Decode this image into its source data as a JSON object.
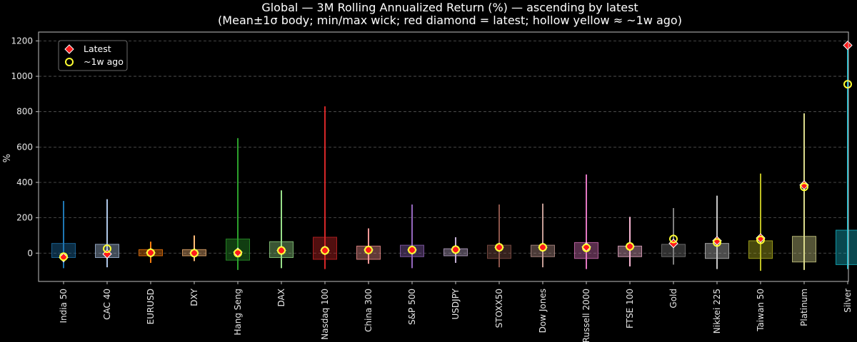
{
  "chart_data": {
    "type": "boxplot",
    "title": "Global — 3M Rolling Annualized Return (%) — ascending by latest",
    "subtitle": "(Mean±1σ body; min/max wick; red diamond = latest; hollow yellow ≈ ~1w ago)",
    "xlabel": "",
    "ylabel": "%",
    "ylim": [
      -160,
      1250
    ],
    "yticks": [
      0,
      200,
      400,
      600,
      800,
      1000,
      1200
    ],
    "grid": true,
    "legend": {
      "position": "top-left",
      "entries": [
        {
          "label": "Latest",
          "marker": "diamond",
          "color": "#ff1a1a"
        },
        {
          "label": "~1w ago",
          "marker": "hollow-circle",
          "color": "#ffff33"
        }
      ]
    },
    "latest_color": "#ff1a1a",
    "week_ago_color": "#ffff33",
    "series": [
      {
        "name": "India 50",
        "color": "#1f77b4",
        "min": -85,
        "max": 295,
        "body_low": -25,
        "body_high": 55,
        "latest": -25,
        "week_ago": -20
      },
      {
        "name": "CAC 40",
        "color": "#aec7e8",
        "min": -80,
        "max": 305,
        "body_low": -25,
        "body_high": 50,
        "latest": -5,
        "week_ago": 25
      },
      {
        "name": "EURUSD",
        "color": "#ff7f0e",
        "min": -55,
        "max": 65,
        "body_low": -15,
        "body_high": 20,
        "latest": 2,
        "week_ago": 2
      },
      {
        "name": "DXY",
        "color": "#ffbb78",
        "min": -45,
        "max": 100,
        "body_low": -15,
        "body_high": 20,
        "latest": 0,
        "week_ago": 0
      },
      {
        "name": "Hang Seng",
        "color": "#2ca02c",
        "min": -95,
        "max": 650,
        "body_low": -40,
        "body_high": 80,
        "latest": 5,
        "week_ago": 0
      },
      {
        "name": "DAX",
        "color": "#98df8a",
        "min": -85,
        "max": 355,
        "body_low": -25,
        "body_high": 65,
        "latest": 15,
        "week_ago": 15
      },
      {
        "name": "Nasdaq 100",
        "color": "#d62728",
        "min": -90,
        "max": 830,
        "body_low": -35,
        "body_high": 90,
        "latest": 15,
        "week_ago": 15
      },
      {
        "name": "China 300",
        "color": "#ff9896",
        "min": -60,
        "max": 140,
        "body_low": -35,
        "body_high": 40,
        "latest": 18,
        "week_ago": 18
      },
      {
        "name": "S&P 500",
        "color": "#9467bd",
        "min": -85,
        "max": 275,
        "body_low": -20,
        "body_high": 45,
        "latest": 18,
        "week_ago": 18
      },
      {
        "name": "USDJPY",
        "color": "#c5b0d5",
        "min": -55,
        "max": 90,
        "body_low": -15,
        "body_high": 25,
        "latest": 20,
        "week_ago": 20
      },
      {
        "name": "STOXX50",
        "color": "#8c564b",
        "min": -80,
        "max": 275,
        "body_low": -30,
        "body_high": 45,
        "latest": 33,
        "week_ago": 33
      },
      {
        "name": "Dow Jones",
        "color": "#c49c94",
        "min": -80,
        "max": 280,
        "body_low": -20,
        "body_high": 45,
        "latest": 33,
        "week_ago": 33
      },
      {
        "name": "Russell 2000",
        "color": "#e377c2",
        "min": -90,
        "max": 445,
        "body_low": -30,
        "body_high": 60,
        "latest": 35,
        "week_ago": 30
      },
      {
        "name": "FTSE 100",
        "color": "#f7b6d2",
        "min": -75,
        "max": 205,
        "body_low": -20,
        "body_high": 40,
        "latest": 38,
        "week_ago": 38
      },
      {
        "name": "Gold",
        "color": "#7f7f7f",
        "min": -65,
        "max": 255,
        "body_low": -20,
        "body_high": 50,
        "latest": 55,
        "week_ago": 80
      },
      {
        "name": "Nikkei 225",
        "color": "#c7c7c7",
        "min": -90,
        "max": 325,
        "body_low": -30,
        "body_high": 55,
        "latest": 70,
        "week_ago": 60
      },
      {
        "name": "Taiwan 50",
        "color": "#bcbd22",
        "min": -100,
        "max": 450,
        "body_low": -30,
        "body_high": 70,
        "latest": 85,
        "week_ago": 75
      },
      {
        "name": "Platinum",
        "color": "#dbdb8d",
        "min": -95,
        "max": 790,
        "body_low": -50,
        "body_high": 95,
        "latest": 385,
        "week_ago": 375
      },
      {
        "name": "Silver",
        "color": "#17becf",
        "min": -90,
        "max": 1175,
        "body_low": -65,
        "body_high": 130,
        "latest": 1175,
        "week_ago": 955
      }
    ]
  }
}
